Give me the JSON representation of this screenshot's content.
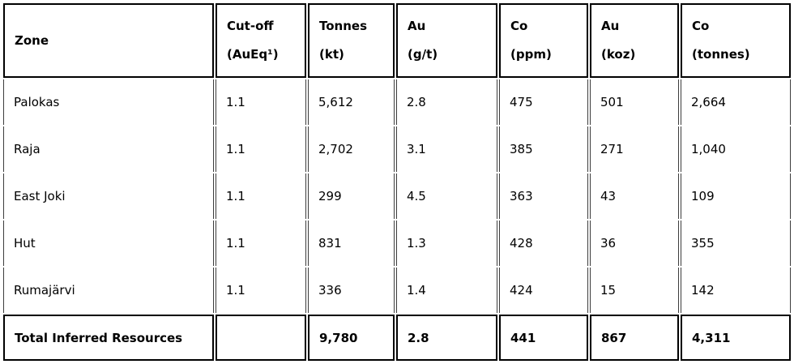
{
  "colors": {
    "border_thick": "#000000",
    "border_thin": "#3c3c3c",
    "text": "#000000",
    "background": "#ffffff"
  },
  "header": {
    "cells": [
      {
        "line1": "Zone",
        "line2": ""
      },
      {
        "line1": "Cut-off",
        "line2": "(AuEq¹)"
      },
      {
        "line1": "Tonnes",
        "line2": "(kt)"
      },
      {
        "line1": "Au",
        "line2": "(g/t)"
      },
      {
        "line1": "Co",
        "line2": "(ppm)"
      },
      {
        "line1": "Au",
        "line2": "(koz)"
      },
      {
        "line1": "Co",
        "line2": "(tonnes)"
      }
    ]
  },
  "rows": [
    {
      "zone": "Palokas",
      "cutoff": "1.1",
      "tonnes": "5,612",
      "au_gt": "2.8",
      "co_ppm": "475",
      "au_koz": "501",
      "co_tonnes": "2,664"
    },
    {
      "zone": "Raja",
      "cutoff": "1.1",
      "tonnes": "2,702",
      "au_gt": "3.1",
      "co_ppm": "385",
      "au_koz": "271",
      "co_tonnes": "1,040"
    },
    {
      "zone": "East Joki",
      "cutoff": "1.1",
      "tonnes": "299",
      "au_gt": "4.5",
      "co_ppm": "363",
      "au_koz": "43",
      "co_tonnes": "109"
    },
    {
      "zone": "Hut",
      "cutoff": "1.1",
      "tonnes": "831",
      "au_gt": "1.3",
      "co_ppm": "428",
      "au_koz": "36",
      "co_tonnes": "355"
    },
    {
      "zone": "Rumajärvi",
      "cutoff": "1.1",
      "tonnes": "336",
      "au_gt": "1.4",
      "co_ppm": "424",
      "au_koz": "15",
      "co_tonnes": "142"
    }
  ],
  "total": {
    "label": "Total Inferred Resources",
    "cutoff": "",
    "tonnes": "9,780",
    "au_gt": "2.8",
    "co_ppm": "441",
    "au_koz": "867",
    "co_tonnes": "4,311"
  }
}
